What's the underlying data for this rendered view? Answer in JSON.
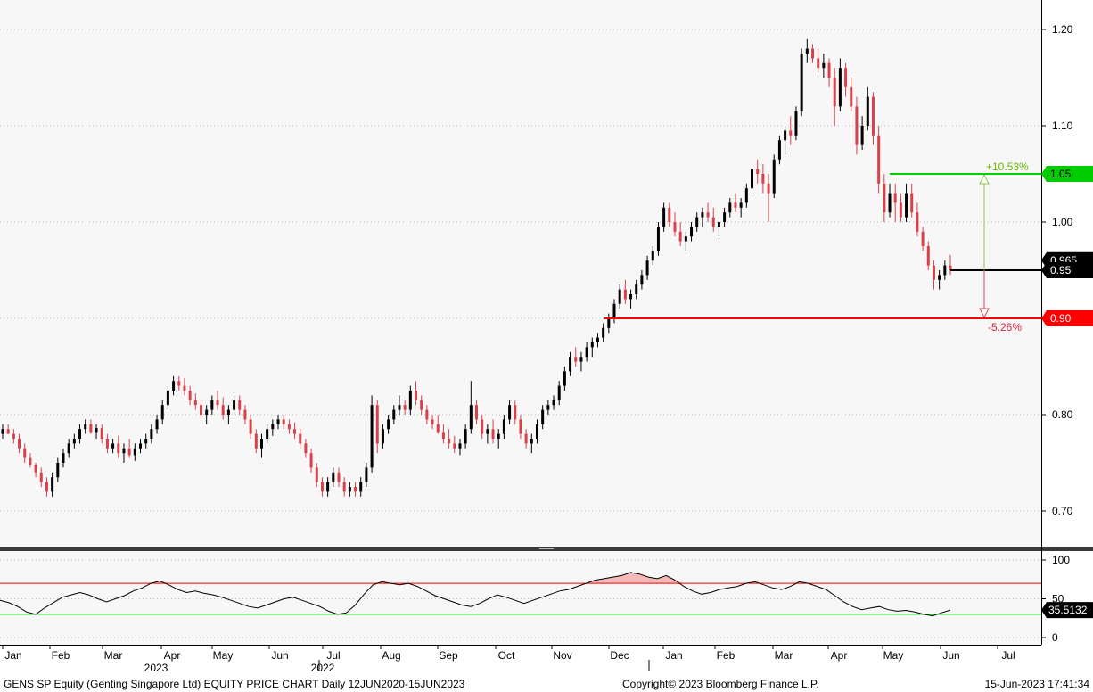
{
  "footer": {
    "left": "GENS SP Equity (Genting Singapore Ltd) EQUITY PRICE CHART  Daily 12JUN2020-15JUN2023",
    "center": "Copyright© 2023 Bloomberg Finance L.P.",
    "right": "15-Jun-2023 17:41:34"
  },
  "colors": {
    "up_candle": "#000000",
    "down_candle": "#d9414a",
    "target_line": "#00cc00",
    "stop_line": "#ff0000",
    "last_price_line": "#000000",
    "rsi_line": "#000000",
    "rsi_overbought": "#ff0000",
    "rsi_oversold": "#00cc00",
    "rsi_fill": "#f4b8b8"
  },
  "chart_data": [
    {
      "type": "candlestick",
      "name": "price",
      "y_ticks": [
        "1.20",
        "1.10",
        "1.00",
        "0.90",
        "0.80",
        "0.70"
      ],
      "y_tick_values": [
        1.2,
        1.1,
        1.0,
        0.9,
        0.8,
        0.7
      ],
      "ylim": [
        0.665,
        1.235
      ],
      "x_month_labels": [
        "Jan",
        "Feb",
        "Mar",
        "Apr",
        "May",
        "Jun",
        "Jul",
        "Aug",
        "Sep",
        "Oct",
        "Nov",
        "Dec",
        "Jan",
        "Feb",
        "Mar",
        "Apr",
        "May",
        "Jun",
        "Jul"
      ],
      "x_year_labels": [
        {
          "label": "2022",
          "after_month": "Jun"
        },
        {
          "label": "2023",
          "after_month": "Mar"
        }
      ],
      "grid": "horizontal-dotted",
      "ohlc": [
        [
          0.78,
          0.79,
          0.775,
          0.785
        ],
        [
          0.785,
          0.79,
          0.78,
          0.78
        ],
        [
          0.78,
          0.785,
          0.77,
          0.775
        ],
        [
          0.775,
          0.78,
          0.76,
          0.765
        ],
        [
          0.765,
          0.77,
          0.75,
          0.755
        ],
        [
          0.755,
          0.76,
          0.745,
          0.748
        ],
        [
          0.748,
          0.75,
          0.735,
          0.74
        ],
        [
          0.74,
          0.745,
          0.725,
          0.73
        ],
        [
          0.73,
          0.735,
          0.715,
          0.72
        ],
        [
          0.72,
          0.74,
          0.715,
          0.735
        ],
        [
          0.735,
          0.755,
          0.73,
          0.75
        ],
        [
          0.75,
          0.765,
          0.745,
          0.76
        ],
        [
          0.76,
          0.775,
          0.755,
          0.77
        ],
        [
          0.77,
          0.78,
          0.765,
          0.775
        ],
        [
          0.775,
          0.79,
          0.77,
          0.785
        ],
        [
          0.785,
          0.795,
          0.78,
          0.79
        ],
        [
          0.79,
          0.795,
          0.78,
          0.782
        ],
        [
          0.782,
          0.79,
          0.775,
          0.786
        ],
        [
          0.786,
          0.79,
          0.77,
          0.775
        ],
        [
          0.775,
          0.78,
          0.76,
          0.765
        ],
        [
          0.765,
          0.775,
          0.76,
          0.77
        ],
        [
          0.77,
          0.778,
          0.755,
          0.76
        ],
        [
          0.76,
          0.77,
          0.75,
          0.765
        ],
        [
          0.765,
          0.775,
          0.755,
          0.758
        ],
        [
          0.758,
          0.77,
          0.752,
          0.765
        ],
        [
          0.765,
          0.775,
          0.76,
          0.77
        ],
        [
          0.77,
          0.78,
          0.765,
          0.775
        ],
        [
          0.775,
          0.79,
          0.77,
          0.785
        ],
        [
          0.785,
          0.8,
          0.78,
          0.795
        ],
        [
          0.795,
          0.815,
          0.79,
          0.81
        ],
        [
          0.81,
          0.83,
          0.805,
          0.825
        ],
        [
          0.825,
          0.84,
          0.82,
          0.835
        ],
        [
          0.835,
          0.84,
          0.825,
          0.83
        ],
        [
          0.83,
          0.838,
          0.82,
          0.825
        ],
        [
          0.825,
          0.83,
          0.81,
          0.815
        ],
        [
          0.815,
          0.822,
          0.805,
          0.81
        ],
        [
          0.81,
          0.815,
          0.795,
          0.8
        ],
        [
          0.8,
          0.81,
          0.79,
          0.805
        ],
        [
          0.805,
          0.82,
          0.8,
          0.815
        ],
        [
          0.815,
          0.825,
          0.805,
          0.81
        ],
        [
          0.81,
          0.818,
          0.795,
          0.8
        ],
        [
          0.8,
          0.81,
          0.79,
          0.805
        ],
        [
          0.805,
          0.82,
          0.8,
          0.815
        ],
        [
          0.815,
          0.82,
          0.8,
          0.805
        ],
        [
          0.805,
          0.81,
          0.79,
          0.795
        ],
        [
          0.795,
          0.8,
          0.775,
          0.78
        ],
        [
          0.78,
          0.785,
          0.76,
          0.765
        ],
        [
          0.765,
          0.78,
          0.755,
          0.775
        ],
        [
          0.775,
          0.79,
          0.77,
          0.785
        ],
        [
          0.785,
          0.795,
          0.778,
          0.79
        ],
        [
          0.79,
          0.8,
          0.785,
          0.795
        ],
        [
          0.795,
          0.8,
          0.785,
          0.79
        ],
        [
          0.79,
          0.795,
          0.78,
          0.785
        ],
        [
          0.785,
          0.792,
          0.775,
          0.78
        ],
        [
          0.78,
          0.785,
          0.765,
          0.77
        ],
        [
          0.77,
          0.775,
          0.755,
          0.76
        ],
        [
          0.76,
          0.765,
          0.74,
          0.745
        ],
        [
          0.745,
          0.75,
          0.725,
          0.73
        ],
        [
          0.73,
          0.735,
          0.715,
          0.72
        ],
        [
          0.72,
          0.735,
          0.715,
          0.73
        ],
        [
          0.73,
          0.745,
          0.725,
          0.74
        ],
        [
          0.74,
          0.745,
          0.725,
          0.73
        ],
        [
          0.73,
          0.735,
          0.715,
          0.72
        ],
        [
          0.72,
          0.73,
          0.715,
          0.725
        ],
        [
          0.725,
          0.73,
          0.715,
          0.72
        ],
        [
          0.72,
          0.735,
          0.715,
          0.73
        ],
        [
          0.73,
          0.75,
          0.725,
          0.745
        ],
        [
          0.745,
          0.82,
          0.74,
          0.81
        ],
        [
          0.81,
          0.815,
          0.76,
          0.77
        ],
        [
          0.77,
          0.79,
          0.765,
          0.785
        ],
        [
          0.785,
          0.8,
          0.78,
          0.795
        ],
        [
          0.795,
          0.81,
          0.79,
          0.805
        ],
        [
          0.805,
          0.82,
          0.8,
          0.81
        ],
        [
          0.81,
          0.815,
          0.8,
          0.805
        ],
        [
          0.805,
          0.83,
          0.8,
          0.825
        ],
        [
          0.825,
          0.835,
          0.81,
          0.815
        ],
        [
          0.815,
          0.82,
          0.8,
          0.805
        ],
        [
          0.805,
          0.81,
          0.79,
          0.795
        ],
        [
          0.795,
          0.8,
          0.785,
          0.79
        ],
        [
          0.79,
          0.8,
          0.78,
          0.782
        ],
        [
          0.782,
          0.79,
          0.77,
          0.775
        ],
        [
          0.775,
          0.785,
          0.765,
          0.77
        ],
        [
          0.77,
          0.778,
          0.76,
          0.765
        ],
        [
          0.765,
          0.775,
          0.758,
          0.77
        ],
        [
          0.77,
          0.79,
          0.765,
          0.785
        ],
        [
          0.785,
          0.835,
          0.78,
          0.81
        ],
        [
          0.81,
          0.815,
          0.79,
          0.795
        ],
        [
          0.795,
          0.8,
          0.775,
          0.78
        ],
        [
          0.78,
          0.79,
          0.77,
          0.785
        ],
        [
          0.785,
          0.795,
          0.77,
          0.775
        ],
        [
          0.775,
          0.785,
          0.765,
          0.78
        ],
        [
          0.78,
          0.8,
          0.775,
          0.795
        ],
        [
          0.795,
          0.815,
          0.79,
          0.81
        ],
        [
          0.81,
          0.815,
          0.79,
          0.795
        ],
        [
          0.795,
          0.8,
          0.775,
          0.78
        ],
        [
          0.78,
          0.785,
          0.765,
          0.77
        ],
        [
          0.77,
          0.78,
          0.76,
          0.775
        ],
        [
          0.775,
          0.795,
          0.77,
          0.79
        ],
        [
          0.79,
          0.81,
          0.785,
          0.805
        ],
        [
          0.805,
          0.815,
          0.8,
          0.81
        ],
        [
          0.81,
          0.82,
          0.805,
          0.815
        ],
        [
          0.815,
          0.835,
          0.81,
          0.83
        ],
        [
          0.83,
          0.85,
          0.825,
          0.845
        ],
        [
          0.845,
          0.865,
          0.84,
          0.86
        ],
        [
          0.86,
          0.87,
          0.85,
          0.855
        ],
        [
          0.855,
          0.865,
          0.845,
          0.86
        ],
        [
          0.86,
          0.875,
          0.855,
          0.87
        ],
        [
          0.87,
          0.88,
          0.86,
          0.875
        ],
        [
          0.875,
          0.885,
          0.87,
          0.88
        ],
        [
          0.88,
          0.895,
          0.875,
          0.89
        ],
        [
          0.89,
          0.905,
          0.885,
          0.9
        ],
        [
          0.9,
          0.92,
          0.895,
          0.915
        ],
        [
          0.915,
          0.935,
          0.91,
          0.93
        ],
        [
          0.93,
          0.94,
          0.915,
          0.92
        ],
        [
          0.92,
          0.93,
          0.91,
          0.925
        ],
        [
          0.925,
          0.94,
          0.92,
          0.935
        ],
        [
          0.935,
          0.95,
          0.93,
          0.945
        ],
        [
          0.945,
          0.965,
          0.94,
          0.96
        ],
        [
          0.96,
          0.975,
          0.955,
          0.97
        ],
        [
          0.97,
          1.0,
          0.965,
          0.995
        ],
        [
          0.995,
          1.02,
          0.99,
          1.015
        ],
        [
          1.015,
          1.02,
          0.995,
          1.0
        ],
        [
          1.0,
          1.01,
          0.985,
          0.99
        ],
        [
          0.99,
          1.0,
          0.975,
          0.98
        ],
        [
          0.98,
          0.99,
          0.97,
          0.985
        ],
        [
          0.985,
          1.0,
          0.98,
          0.995
        ],
        [
          0.995,
          1.01,
          0.99,
          1.005
        ],
        [
          1.005,
          1.015,
          0.995,
          1.01
        ],
        [
          1.01,
          1.02,
          1.0,
          1.005
        ],
        [
          1.005,
          1.015,
          0.99,
          0.995
        ],
        [
          0.995,
          1.005,
          0.985,
          1.0
        ],
        [
          1.0,
          1.015,
          0.995,
          1.01
        ],
        [
          1.01,
          1.025,
          1.005,
          1.02
        ],
        [
          1.02,
          1.03,
          1.01,
          1.015
        ],
        [
          1.015,
          1.025,
          1.005,
          1.02
        ],
        [
          1.02,
          1.04,
          1.015,
          1.035
        ],
        [
          1.035,
          1.06,
          1.03,
          1.055
        ],
        [
          1.055,
          1.065,
          1.04,
          1.05
        ],
        [
          1.05,
          1.06,
          1.03,
          1.04
        ],
        [
          1.04,
          1.05,
          1.0,
          1.03
        ],
        [
          1.03,
          1.07,
          1.025,
          1.065
        ],
        [
          1.065,
          1.09,
          1.06,
          1.085
        ],
        [
          1.085,
          1.1,
          1.07,
          1.095
        ],
        [
          1.095,
          1.11,
          1.08,
          1.09
        ],
        [
          1.09,
          1.12,
          1.085,
          1.115
        ],
        [
          1.115,
          1.18,
          1.11,
          1.175
        ],
        [
          1.175,
          1.19,
          1.165,
          1.18
        ],
        [
          1.18,
          1.185,
          1.165,
          1.17
        ],
        [
          1.17,
          1.18,
          1.155,
          1.16
        ],
        [
          1.16,
          1.175,
          1.15,
          1.165
        ],
        [
          1.165,
          1.17,
          1.14,
          1.15
        ],
        [
          1.15,
          1.16,
          1.1,
          1.12
        ],
        [
          1.12,
          1.17,
          1.115,
          1.16
        ],
        [
          1.16,
          1.165,
          1.13,
          1.14
        ],
        [
          1.14,
          1.15,
          1.115,
          1.12
        ],
        [
          1.12,
          1.13,
          1.07,
          1.08
        ],
        [
          1.08,
          1.11,
          1.075,
          1.1
        ],
        [
          1.1,
          1.14,
          1.095,
          1.13
        ],
        [
          1.13,
          1.135,
          1.08,
          1.09
        ],
        [
          1.09,
          1.1,
          1.03,
          1.04
        ],
        [
          1.04,
          1.05,
          1.0,
          1.01
        ],
        [
          1.01,
          1.04,
          1.005,
          1.03
        ],
        [
          1.03,
          1.04,
          1.0,
          1.02
        ],
        [
          1.02,
          1.03,
          1.0,
          1.005
        ],
        [
          1.005,
          1.04,
          1.0,
          1.03
        ],
        [
          1.03,
          1.04,
          1.005,
          1.01
        ],
        [
          1.01,
          1.02,
          0.985,
          0.99
        ],
        [
          0.99,
          0.995,
          0.97,
          0.975
        ],
        [
          0.975,
          0.98,
          0.95,
          0.955
        ],
        [
          0.955,
          0.96,
          0.93,
          0.94
        ],
        [
          0.94,
          0.95,
          0.93,
          0.945
        ],
        [
          0.945,
          0.96,
          0.94,
          0.955
        ],
        [
          0.955,
          0.966,
          0.945,
          0.95
        ]
      ],
      "last_price": 0.95,
      "last_price_labels": [
        "0.965",
        "0.95"
      ],
      "target": {
        "price": 1.05,
        "label": "1.05",
        "pct_label": "+10.53%"
      },
      "stop": {
        "price": 0.9,
        "label": "0.90",
        "pct_label": "-5.26%"
      }
    },
    {
      "type": "line",
      "name": "rsi",
      "y_ticks": [
        "100",
        "50",
        "0"
      ],
      "y_tick_values": [
        100,
        50,
        0
      ],
      "ylim": [
        -8,
        108
      ],
      "overbought": 70,
      "oversold": 30,
      "last_value_label": "35.5132",
      "values": [
        48,
        45,
        40,
        33,
        30,
        38,
        45,
        52,
        55,
        58,
        55,
        50,
        46,
        50,
        54,
        60,
        64,
        70,
        73,
        68,
        62,
        58,
        60,
        57,
        55,
        52,
        48,
        44,
        40,
        38,
        42,
        46,
        50,
        52,
        48,
        44,
        40,
        34,
        30,
        32,
        42,
        56,
        68,
        72,
        70,
        68,
        70,
        66,
        60,
        54,
        50,
        46,
        42,
        40,
        44,
        50,
        55,
        52,
        48,
        44,
        48,
        52,
        56,
        60,
        62,
        66,
        70,
        74,
        76,
        78,
        80,
        84,
        82,
        78,
        76,
        80,
        74,
        66,
        60,
        56,
        58,
        62,
        64,
        66,
        70,
        72,
        68,
        64,
        62,
        66,
        72,
        70,
        66,
        62,
        54,
        46,
        40,
        36,
        38,
        40,
        36,
        34,
        35,
        33,
        30,
        28,
        32,
        35.5132
      ]
    }
  ]
}
